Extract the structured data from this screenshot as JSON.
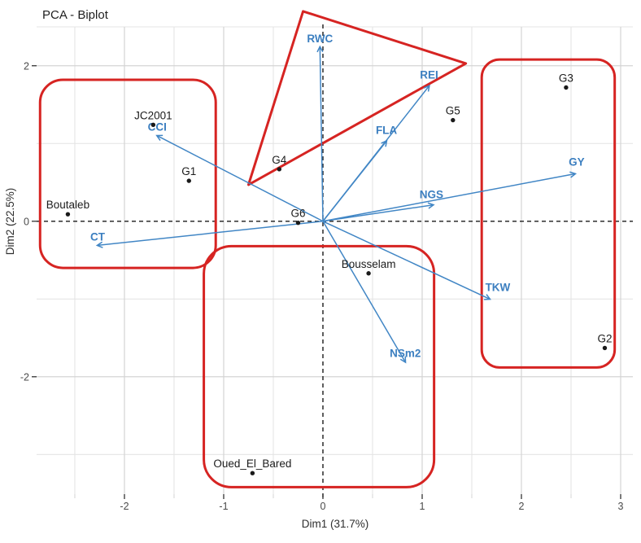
{
  "title": "PCA - Biplot",
  "colors": {
    "arrow": "#4186c5",
    "arrow_label": "#3c7fc0",
    "point": "#1a1a1a",
    "point_label": "#1c1c1c",
    "hull": "#d62422",
    "grid_major": "#d4d4d4",
    "grid_minor": "#e4e4e4",
    "axis_text": "#4a4a4a",
    "dashed_line": "#1a1a1a",
    "background": "#ffffff"
  },
  "chart_data": {
    "type": "scatter",
    "title": "PCA - Biplot",
    "xlabel": "Dim1 (31.7%)",
    "ylabel": "Dim2 (22.5%)",
    "xlim": [
      -2.885,
      3.123
    ],
    "ylim": [
      -3.51,
      2.5
    ],
    "x_ticks": [
      -2,
      -1,
      0,
      1,
      2,
      3
    ],
    "x_minor": [
      -2.5,
      -1.5,
      -0.5,
      0.5,
      1.5,
      2.5
    ],
    "y_ticks": [
      -2,
      0,
      2
    ],
    "y_minor": [
      -3,
      -1,
      1,
      2.5
    ],
    "grid": "major+minor, light gray, white panel",
    "legend": "none",
    "zero_lines": "black dashed through x=0 and y=0",
    "points": [
      {
        "label": "Boutaleb",
        "x": -2.57,
        "y": 0.09
      },
      {
        "label": "JC2001",
        "x": -1.71,
        "y": 1.24
      },
      {
        "label": "G1",
        "x": -1.35,
        "y": 0.52
      },
      {
        "label": "G4",
        "x": -0.44,
        "y": 0.67
      },
      {
        "label": "G6",
        "x": -0.25,
        "y": -0.02
      },
      {
        "label": "G5",
        "x": 1.31,
        "y": 1.3
      },
      {
        "label": "G3",
        "x": 2.45,
        "y": 1.72
      },
      {
        "label": "G2",
        "x": 2.84,
        "y": -1.63
      },
      {
        "label": "Bousselam",
        "x": 0.46,
        "y": -0.67
      },
      {
        "label": "Oued_El_Bared",
        "x": -0.71,
        "y": -3.24
      }
    ],
    "vectors": [
      {
        "label": "RWC",
        "x": -0.03,
        "y": 2.24,
        "dx": 0,
        "dy": 0
      },
      {
        "label": "CCI",
        "x": -1.67,
        "y": 1.1,
        "dx": 0,
        "dy": 0
      },
      {
        "label": "REI",
        "x": 1.07,
        "y": 1.74,
        "dx": 0,
        "dy": -3
      },
      {
        "label": "FLA",
        "x": 0.64,
        "y": 1.03,
        "dx": 0,
        "dy": -3
      },
      {
        "label": "GY",
        "x": 2.54,
        "y": 0.61,
        "dx": 2,
        "dy": -4
      },
      {
        "label": "NGS",
        "x": 1.11,
        "y": 0.21,
        "dx": -2,
        "dy": -2
      },
      {
        "label": "TKW",
        "x": 1.68,
        "y": -1.0,
        "dx": 10,
        "dy": -4
      },
      {
        "label": "NSm2",
        "x": 0.83,
        "y": -1.81,
        "dx": 0,
        "dy": 0
      },
      {
        "label": "CT",
        "x": -2.27,
        "y": -0.31,
        "dx": 0,
        "dy": 0
      }
    ],
    "clusters": [
      {
        "shape": "rounded-rect",
        "name": "cluster-left",
        "x1": -2.85,
        "x2": -1.08,
        "y1": -0.6,
        "y2": 1.82,
        "radius": 28
      },
      {
        "shape": "rounded-rect",
        "name": "cluster-right",
        "x1": 1.6,
        "x2": 2.94,
        "y1": -1.88,
        "y2": 2.08,
        "radius": 22
      },
      {
        "shape": "rounded-rect",
        "name": "cluster-bottom",
        "x1": -1.2,
        "x2": 1.12,
        "y1": -3.42,
        "y2": -0.32,
        "radius": 34
      },
      {
        "shape": "triangle",
        "name": "cluster-triangle",
        "pts": [
          [
            -0.2,
            2.7
          ],
          [
            1.44,
            2.03
          ],
          [
            -0.75,
            0.47
          ]
        ]
      }
    ]
  }
}
